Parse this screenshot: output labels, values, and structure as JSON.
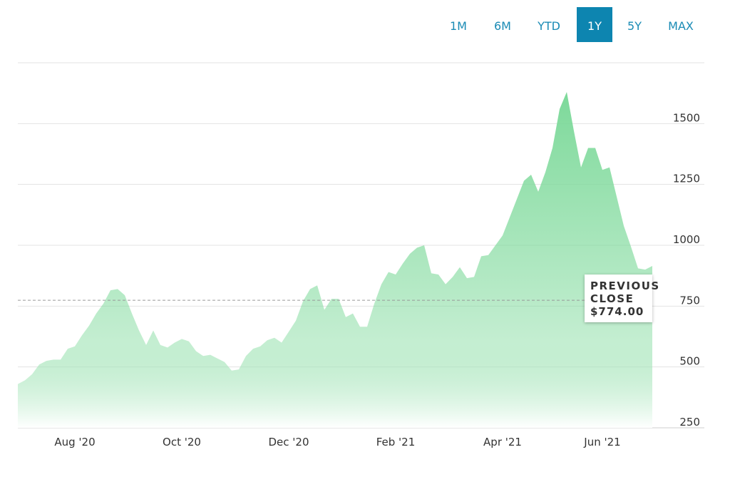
{
  "range_buttons": [
    "1M",
    "6M",
    "YTD",
    "1Y",
    "5Y",
    "MAX"
  ],
  "active_range": "1Y",
  "chart_data": {
    "type": "area",
    "categories": [
      null,
      null,
      null,
      null,
      null,
      null,
      null,
      null,
      "Aug '20",
      null,
      null,
      null,
      null,
      null,
      null,
      null,
      null,
      null,
      null,
      null,
      null,
      null,
      null,
      "Oct '20",
      null,
      null,
      null,
      null,
      null,
      null,
      null,
      null,
      null,
      null,
      null,
      null,
      null,
      null,
      "Dec '20",
      null,
      null,
      null,
      null,
      null,
      null,
      null,
      null,
      null,
      null,
      null,
      null,
      null,
      null,
      "Feb '21",
      null,
      null,
      null,
      null,
      null,
      null,
      null,
      null,
      null,
      null,
      null,
      null,
      null,
      null,
      "Apr '21",
      null,
      null,
      null,
      null,
      null,
      null,
      null,
      null,
      null,
      null,
      null,
      null,
      null,
      "Jun '21",
      null,
      null,
      null,
      null,
      null,
      null,
      null
    ],
    "series": [
      {
        "color": "#7dd99a",
        "values": [
          430,
          445,
          470,
          510,
          525,
          530,
          530,
          575,
          585,
          630,
          670,
          720,
          760,
          815,
          820,
          795,
          720,
          650,
          590,
          650,
          590,
          580,
          600,
          615,
          605,
          565,
          545,
          550,
          535,
          520,
          485,
          490,
          545,
          575,
          585,
          610,
          620,
          600,
          645,
          690,
          770,
          820,
          835,
          735,
          780,
          780,
          705,
          720,
          665,
          665,
          760,
          840,
          890,
          880,
          925,
          965,
          990,
          1000,
          885,
          880,
          840,
          870,
          910,
          865,
          870,
          955,
          960,
          1000,
          1040,
          1115,
          1190,
          1265,
          1290,
          1220,
          1300,
          1400,
          1560,
          1630,
          1470,
          1320,
          1400,
          1400,
          1310,
          1320,
          1200,
          1080,
          995,
          905,
          900,
          915
        ]
      }
    ],
    "ylim": [
      250,
      1750
    ],
    "yticks": [
      250,
      500,
      750,
      1000,
      1250,
      1500
    ],
    "grid": true,
    "previous_close": {
      "label": "PREVIOUS CLOSE",
      "value": 774,
      "value_label": "$774.00"
    }
  }
}
